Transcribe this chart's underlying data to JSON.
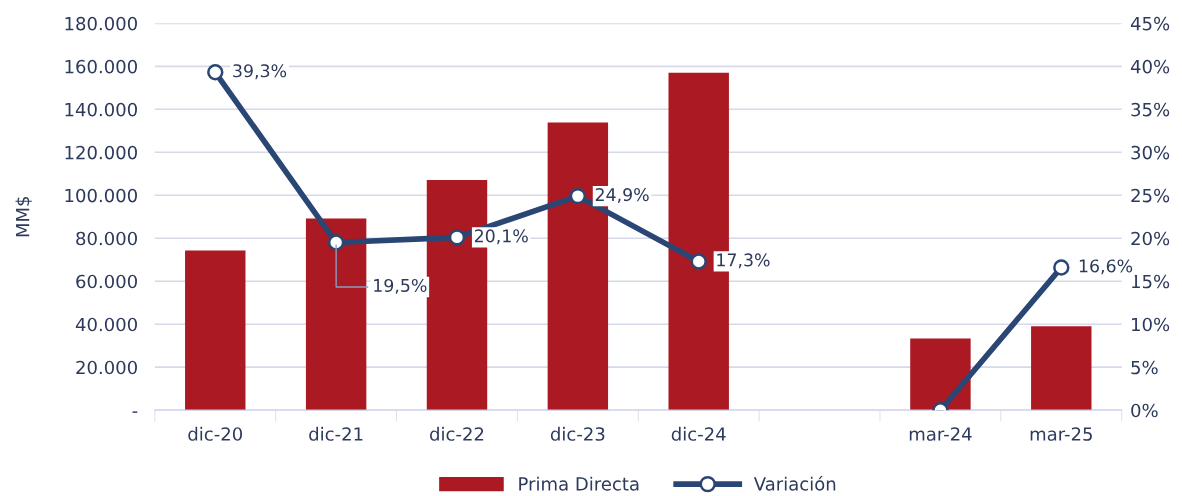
{
  "chart_data": {
    "type": "bar",
    "ylabel": "MM$",
    "categories": [
      "dic-20",
      "dic-21",
      "dic-22",
      "dic-23",
      "dic-24",
      null,
      "mar-24",
      "mar-25"
    ],
    "series": [
      {
        "name": "Prima Directa",
        "type": "bar",
        "color": "#ab1923",
        "values": [
          74300,
          89200,
          107100,
          133800,
          157000,
          null,
          33300,
          39000
        ]
      },
      {
        "name": "Variación",
        "type": "line",
        "axis": "y2",
        "color": "#2a4674",
        "marker": "circle",
        "values": [
          39.3,
          19.5,
          20.1,
          24.9,
          17.3,
          null,
          0,
          16.6
        ],
        "value_labels": [
          "39,3%",
          "19,5%",
          "20,1%",
          "24,9%",
          "17,3%",
          null,
          null,
          "16,6%"
        ]
      }
    ],
    "ylim": [
      0,
      180000
    ],
    "yticks": [
      {
        "value": 0,
        "label": "-"
      },
      {
        "value": 20000,
        "label": "20.000"
      },
      {
        "value": 40000,
        "label": "40.000"
      },
      {
        "value": 60000,
        "label": "60.000"
      },
      {
        "value": 80000,
        "label": "80.000"
      },
      {
        "value": 100000,
        "label": "100.000"
      },
      {
        "value": 120000,
        "label": "120.000"
      },
      {
        "value": 140000,
        "label": "140.000"
      },
      {
        "value": 160000,
        "label": "160.000"
      },
      {
        "value": 180000,
        "label": "180.000"
      }
    ],
    "y2lim": [
      0,
      45
    ],
    "y2ticks": [
      {
        "value": 0,
        "label": "0%"
      },
      {
        "value": 5,
        "label": "5%"
      },
      {
        "value": 10,
        "label": "10%"
      },
      {
        "value": 15,
        "label": "15%"
      },
      {
        "value": 20,
        "label": "20%"
      },
      {
        "value": 25,
        "label": "25%"
      },
      {
        "value": 30,
        "label": "30%"
      },
      {
        "value": 35,
        "label": "35%"
      },
      {
        "value": 40,
        "label": "40%"
      },
      {
        "value": 45,
        "label": "45%"
      }
    ],
    "grid": "y",
    "legend": "bottom"
  }
}
